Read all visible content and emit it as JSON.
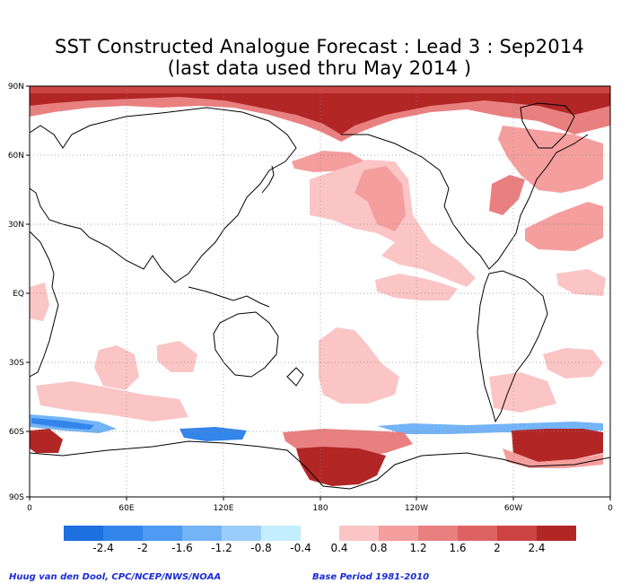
{
  "title": {
    "line1": "SST Constructed Analogue Forecast : Lead 3 : Sep2014",
    "line2": "(last data used thru May 2014 )"
  },
  "axes": {
    "lat_labels": [
      "90N",
      "60N",
      "30N",
      "EQ",
      "30S",
      "60S",
      "90S"
    ],
    "lon_labels": [
      "0",
      "60E",
      "120E",
      "180",
      "120W",
      "60W",
      "0"
    ]
  },
  "colorbar": {
    "labels": [
      "-2.4",
      "-2",
      "-1.6",
      "-1.2",
      "-0.8",
      "-0.4",
      "0.4",
      "0.8",
      "1.2",
      "1.6",
      "2",
      "2.4"
    ],
    "negative_colors": [
      "#1e6fe0",
      "#3385ea",
      "#4d9bf2",
      "#73b4f7",
      "#9bcdfa",
      "#c4eefe"
    ],
    "positive_colors": [
      "#fbc5c5",
      "#f49e9e",
      "#e98080",
      "#df6262",
      "#cc4343",
      "#b22626"
    ]
  },
  "footer": {
    "credit": "Huug van den Dool, CPC/NCEP/NWS/NOAA",
    "base_period": "Base Period 1981-2010"
  }
}
